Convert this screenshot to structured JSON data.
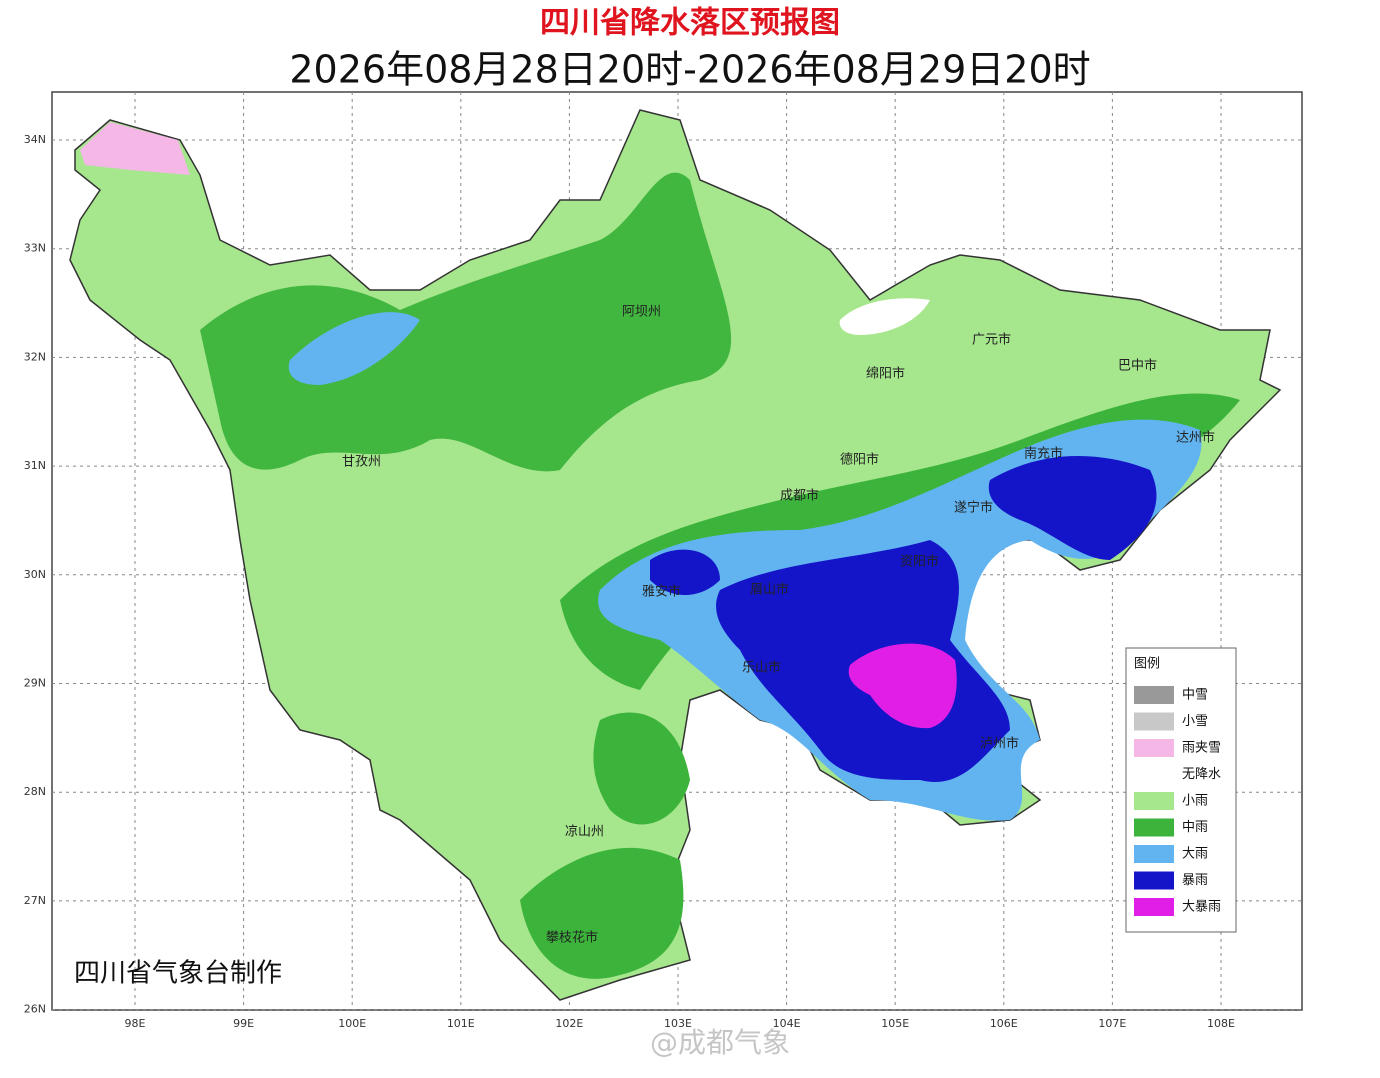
{
  "header": {
    "title": "四川省降水落区预报图",
    "subtitle": "2026年08月28日20时-2026年08月29日20时"
  },
  "map": {
    "latitude_labels": [
      "34N",
      "33N",
      "32N",
      "31N",
      "30N",
      "29N",
      "28N",
      "27N",
      "26N"
    ],
    "longitude_labels": [
      "98E",
      "99E",
      "100E",
      "101E",
      "102E",
      "103E",
      "104E",
      "105E",
      "106E",
      "107E",
      "108E"
    ],
    "places": [
      "阿坝州",
      "甘孜州",
      "绵阳市",
      "广元市",
      "巴中市",
      "德阳市",
      "成都市",
      "南充市",
      "达州市",
      "遂宁市",
      "资阳市",
      "雅安市",
      "眉山市",
      "乐山市",
      "泸州市",
      "凉山州",
      "攀枝花市"
    ]
  },
  "legend": {
    "title": "图例",
    "items": [
      {
        "label": "中雪",
        "color": "#999999"
      },
      {
        "label": "小雪",
        "color": "#c8c8c8"
      },
      {
        "label": "雨夹雪",
        "color": "#f5b8e6"
      },
      {
        "label": "无降水",
        "color": "#ffffff"
      },
      {
        "label": "小雨",
        "color": "#a6e68c"
      },
      {
        "label": "中雨",
        "color": "#3cb43c"
      },
      {
        "label": "大雨",
        "color": "#62b4f0"
      },
      {
        "label": "暴雨",
        "color": "#1414c8"
      },
      {
        "label": "大暴雨",
        "color": "#e11ee6"
      }
    ]
  },
  "footer": {
    "credit": "四川省气象台制作",
    "watermark": "@成都气象"
  }
}
